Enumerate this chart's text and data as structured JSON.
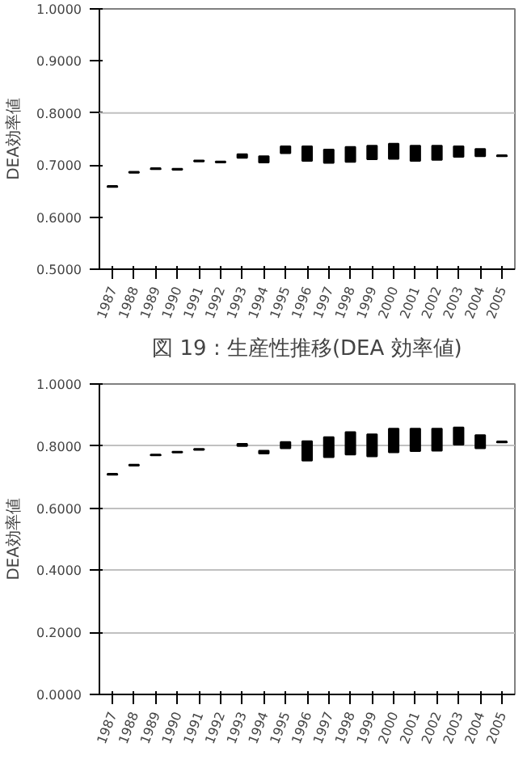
{
  "chart_data": [
    {
      "type": "bar",
      "title": "図 19 : 生産性推移(DEA 効率値)",
      "ylabel": "DEA効率値",
      "categories": [
        "1987",
        "1988",
        "1989",
        "1990",
        "1991",
        "1992",
        "1993",
        "1994",
        "1995",
        "1996",
        "1997",
        "1998",
        "1999",
        "2000",
        "2001",
        "2002",
        "2003",
        "2004",
        "2005"
      ],
      "base": [
        0.658,
        0.685,
        0.692,
        0.691,
        0.707,
        0.705,
        0.714,
        0.705,
        0.723,
        0.708,
        0.704,
        0.706,
        0.711,
        0.712,
        0.708,
        0.71,
        0.716,
        0.717,
        0.717
      ],
      "values": [
        0.002,
        0.002,
        0.002,
        0.002,
        0.002,
        0.002,
        0.007,
        0.012,
        0.013,
        0.028,
        0.026,
        0.029,
        0.026,
        0.029,
        0.029,
        0.027,
        0.02,
        0.014,
        0.002
      ],
      "color": "#000000",
      "ylim": [
        0.5,
        1.0
      ],
      "yticks": [
        {
          "value": 1.0,
          "label": "1.0000"
        },
        {
          "value": 0.9,
          "label": "0.9000"
        },
        {
          "value": 0.8,
          "label": "0.8000"
        },
        {
          "value": 0.7,
          "label": "0.7000"
        },
        {
          "value": 0.6,
          "label": "0.6000"
        },
        {
          "value": 0.5,
          "label": "0.5000"
        }
      ],
      "ref_lines": [
        {
          "axis": "y",
          "value": 0.8,
          "color": "#c0c0c0"
        }
      ]
    },
    {
      "type": "bar",
      "ylabel": "DEA効率値",
      "categories": [
        "1987",
        "1988",
        "1989",
        "1990",
        "1991",
        "1992",
        "1993",
        "1994",
        "1995",
        "1996",
        "1997",
        "1998",
        "1999",
        "2000",
        "2001",
        "2002",
        "2003",
        "2004",
        "2005"
      ],
      "base": [
        0.708,
        0.737,
        0.77,
        0.779,
        0.788,
        null,
        0.8,
        0.776,
        0.793,
        0.753,
        0.764,
        0.773,
        0.767,
        0.78,
        0.784,
        0.785,
        0.805,
        0.793,
        0.812
      ],
      "values": [
        0.003,
        0.003,
        0.003,
        0.003,
        0.003,
        null,
        0.007,
        0.009,
        0.02,
        0.063,
        0.065,
        0.072,
        0.071,
        0.076,
        0.072,
        0.071,
        0.055,
        0.042,
        0.003
      ],
      "color": "#000000",
      "ylim": [
        0.0,
        1.0
      ],
      "yticks": [
        {
          "value": 1.0,
          "label": "1.0000"
        },
        {
          "value": 0.8,
          "label": "0.8000"
        },
        {
          "value": 0.6,
          "label": "0.6000"
        },
        {
          "value": 0.4,
          "label": "0.4000"
        },
        {
          "value": 0.2,
          "label": "0.2000"
        },
        {
          "value": 0.0,
          "label": "0.0000"
        }
      ],
      "grid": "y"
    }
  ]
}
